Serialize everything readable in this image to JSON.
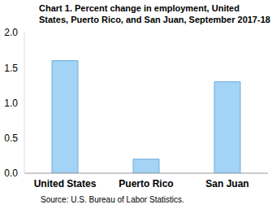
{
  "chart_data": {
    "type": "bar",
    "title": "Chart 1. Percent change in employment, United States, Puerto Rico, and San Juan, September 2017-18",
    "annotations": [
      "Source: U.S. Bureau of Labor Statistics."
    ],
    "categories": [
      "United States",
      "Puerto Rico",
      "San Juan"
    ],
    "values": [
      1.6,
      0.2,
      1.3
    ],
    "color": "#a3d3f5",
    "ylim": [
      0,
      2
    ],
    "yticks": [
      {
        "value": 0,
        "label": "0.0"
      },
      {
        "value": 0.5,
        "label": "0.5"
      },
      {
        "value": 1,
        "label": "1.0"
      },
      {
        "value": 1.5,
        "label": "1.5"
      },
      {
        "value": 2,
        "label": "2.0"
      }
    ],
    "grid": false
  }
}
